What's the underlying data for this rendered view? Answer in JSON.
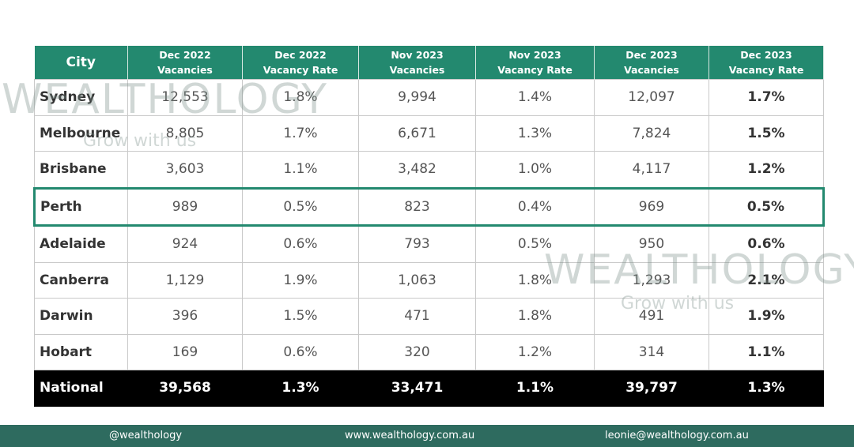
{
  "header": {
    "columns": [
      {
        "lines": [
          "City"
        ]
      },
      {
        "lines": [
          "Dec 2022",
          "Vacancies"
        ]
      },
      {
        "lines": [
          "Dec 2022",
          "Vacancy Rate"
        ]
      },
      {
        "lines": [
          "Nov 2023",
          "Vacancies"
        ]
      },
      {
        "lines": [
          "Nov 2023",
          "Vacancy Rate"
        ]
      },
      {
        "lines": [
          "Dec 2023",
          "Vacancies"
        ]
      },
      {
        "lines": [
          "Dec 2023",
          "Vacancy Rate"
        ]
      }
    ]
  },
  "table": {
    "rows": [
      [
        "Sydney",
        "12,553",
        "1.8%",
        "9,994",
        "1.4%",
        "12,097",
        "1.7%"
      ],
      [
        "Melbourne",
        "8,805",
        "1.7%",
        "6,671",
        "1.3%",
        "7,824",
        "1.5%"
      ],
      [
        "Brisbane",
        "3,603",
        "1.1%",
        "3,482",
        "1.0%",
        "4,117",
        "1.2%"
      ],
      [
        "Perth",
        "989",
        "0.5%",
        "823",
        "0.4%",
        "969",
        "0.5%"
      ],
      [
        "Adelaide",
        "924",
        "0.6%",
        "793",
        "0.5%",
        "950",
        "0.6%"
      ],
      [
        "Canberra",
        "1,129",
        "1.9%",
        "1,063",
        "1.8%",
        "1,293",
        "2.1%"
      ],
      [
        "Darwin",
        "396",
        "1.5%",
        "471",
        "1.8%",
        "491",
        "1.9%"
      ],
      [
        "Hobart",
        "169",
        "0.6%",
        "320",
        "1.2%",
        "314",
        "1.1%"
      ],
      [
        "National",
        "39,568",
        "1.3%",
        "33,471",
        "1.1%",
        "39,797",
        "1.3%"
      ]
    ]
  },
  "watermark": {
    "name": "WEALTHOLOGY",
    "tagline": "Grow with us"
  },
  "footer": {
    "handle": "@wealthology",
    "website": "www.wealthology.com.au",
    "email": "leonie@wealthology.com.au"
  }
}
